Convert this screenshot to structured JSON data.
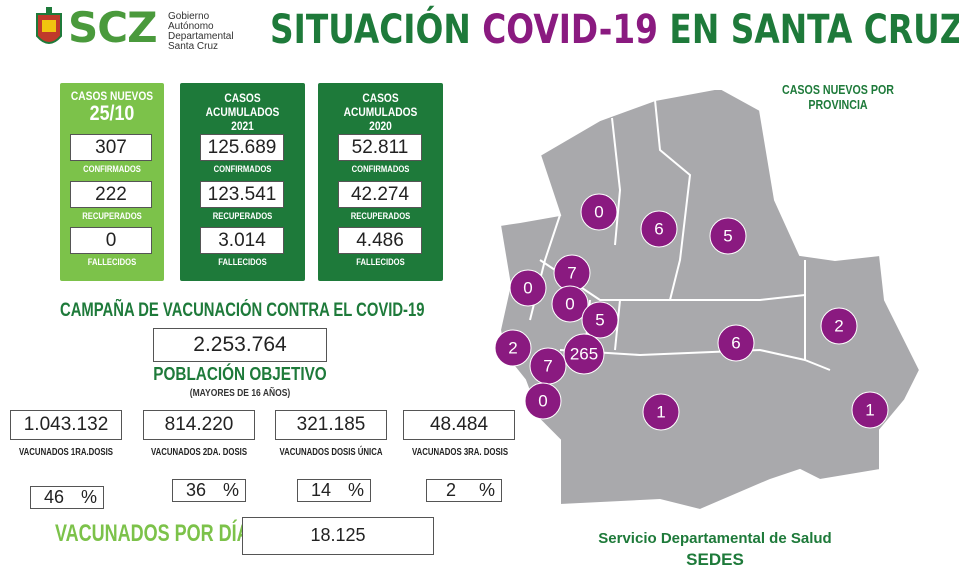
{
  "header": {
    "logo_text": "SCZ",
    "logo_sub": [
      "Gobierno",
      "Autónomo",
      "Departamental",
      "Santa Cruz"
    ],
    "title_part1": "SITUACIÓN ",
    "title_part2": "COVID-19",
    "title_part3": " EN SANTA CRUZ",
    "accent_green": "#1e7a3a",
    "accent_purple": "#8a1a80"
  },
  "daily": {
    "heading": "CASOS NUEVOS",
    "date": "25/10",
    "confirmed": "307",
    "confirmed_label": "CONFIRMADOS",
    "recovered": "222",
    "recovered_label": "RECUPERADOS",
    "deaths": "0",
    "deaths_label": "FALLECIDOS"
  },
  "acc2021": {
    "heading": "CASOS ACUMULADOS",
    "year": "2021",
    "confirmed": "125.689",
    "confirmed_label": "CONFIRMADOS",
    "recovered": "123.541",
    "recovered_label": "RECUPERADOS",
    "deaths": "3.014",
    "deaths_label": "FALLECIDOS"
  },
  "acc2020": {
    "heading": "CASOS ACUMULADOS",
    "year": "2020",
    "confirmed": "52.811",
    "confirmed_label": "CONFIRMADOS",
    "recovered": "42.274",
    "recovered_label": "RECUPERADOS",
    "deaths": "4.486",
    "deaths_label": "FALLECIDOS"
  },
  "vaccination": {
    "title": "CAMPAÑA DE VACUNACIÓN CONTRA EL COVID-19",
    "target_population": "2.253.764",
    "target_label": "POBLACIÓN OBJETIVO",
    "target_sub": "(MAYORES DE 16 AÑOS)",
    "doses": [
      {
        "value": "1.043.132",
        "label": "VACUNADOS 1RA.DOSIS",
        "pct": "46"
      },
      {
        "value": "814.220",
        "label": "VACUNADOS 2DA. DOSIS",
        "pct": "36"
      },
      {
        "value": "321.185",
        "label": "VACUNADOS DOSIS ÚNICA",
        "pct": "14"
      },
      {
        "value": "48.484",
        "label": "VACUNADOS 3RA. DOSIS",
        "pct": "2"
      }
    ],
    "pct_symbol": "%",
    "per_day_label": "VACUNADOS POR DÍA",
    "per_day_value": "18.125"
  },
  "map": {
    "title": "CASOS NUEVOS POR PROVINCIA",
    "bubbles": [
      "0",
      "6",
      "5",
      "7",
      "0",
      "0",
      "5",
      "2",
      "6",
      "2",
      "7",
      "265",
      "0",
      "1",
      "1"
    ]
  },
  "footer": {
    "line1": "Servicio Departamental de Salud",
    "line2": "SEDES"
  }
}
